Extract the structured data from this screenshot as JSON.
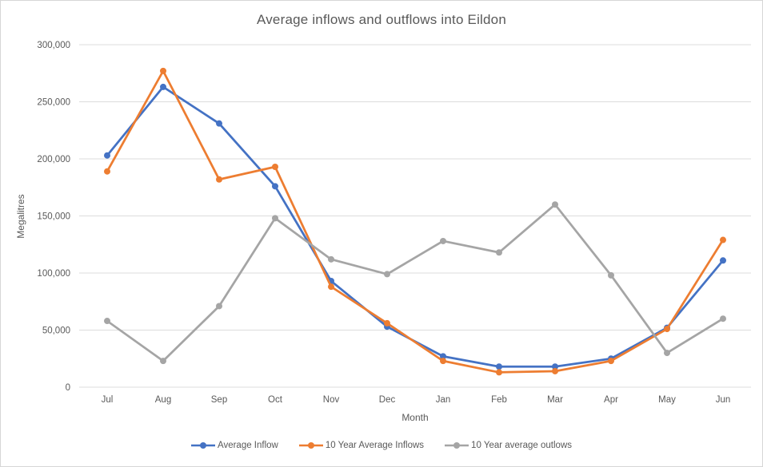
{
  "chart_data": {
    "type": "line",
    "title": "Average inflows and outflows into Eildon",
    "xlabel": "Month",
    "ylabel": "Megalitres",
    "categories": [
      "Jul",
      "Aug",
      "Sep",
      "Oct",
      "Nov",
      "Dec",
      "Jan",
      "Feb",
      "Mar",
      "Apr",
      "May",
      "Jun"
    ],
    "series": [
      {
        "name": "Average Inflow",
        "color": "#4472C4",
        "values": [
          203000,
          263000,
          231000,
          176000,
          93000,
          53000,
          27000,
          18000,
          18000,
          25000,
          52000,
          111000
        ]
      },
      {
        "name": "10 Year Average Inflows",
        "color": "#ED7D31",
        "values": [
          189000,
          277000,
          182000,
          193000,
          88000,
          56000,
          23000,
          13000,
          14000,
          23000,
          51000,
          129000
        ]
      },
      {
        "name": "10 Year average outlows",
        "color": "#A5A5A5",
        "values": [
          58000,
          23000,
          71000,
          148000,
          112000,
          99000,
          128000,
          118000,
          160000,
          98000,
          30000,
          60000
        ]
      }
    ],
    "ylim": [
      0,
      300000
    ],
    "ytick_step": 50000,
    "ytick_labels": [
      "0",
      "50,000",
      "100,000",
      "150,000",
      "200,000",
      "250,000",
      "300,000"
    ],
    "grid": true,
    "legend_position": "bottom"
  },
  "style": {
    "text_color": "#595959",
    "grid_color": "#dcdcdc",
    "border_color": "#d6d6d6",
    "background": "#ffffff"
  }
}
